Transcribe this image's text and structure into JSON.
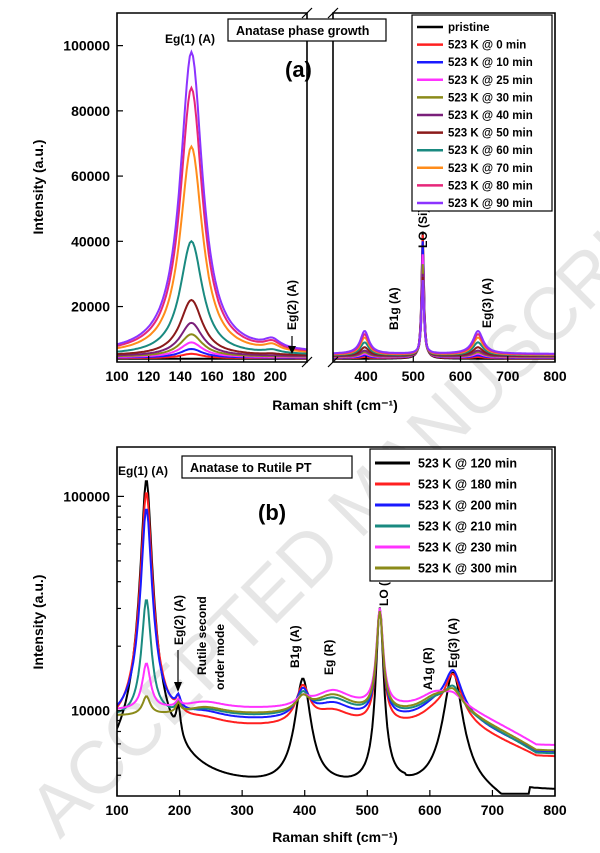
{
  "watermark": "ACCEPTED MANUSCRIPT",
  "chart_data": [
    {
      "type": "line",
      "panel_label": "(a)",
      "title": "Anatase phase growth",
      "xlabel": "Raman shift (cm⁻¹)",
      "ylabel": "Intensity (a.u.)",
      "xlim_left": [
        100,
        220
      ],
      "xlim_right": [
        330,
        800
      ],
      "ylim": [
        3000,
        110000
      ],
      "yscale": "linear",
      "xticks_left": [
        100,
        120,
        140,
        160,
        180,
        200
      ],
      "xticks_right": [
        400,
        500,
        600,
        700,
        800
      ],
      "yticks": [
        20000,
        40000,
        60000,
        80000,
        100000
      ],
      "legend_position": "top-right",
      "annotations": [
        {
          "text": "Eg(1) (A)",
          "x": 147
        },
        {
          "text": "Eg(2) (A)",
          "x": 198
        },
        {
          "text": "B1g (A)",
          "x": 397
        },
        {
          "text": "LO (Si)",
          "x": 520
        },
        {
          "text": "Eg(3) (A)",
          "x": 637
        }
      ],
      "series": [
        {
          "name": "pristine",
          "color": "#000000",
          "peaks": {
            "Eg1": 4000,
            "Eg2": 4000,
            "B1g": 4000,
            "Si": 43000,
            "Eg3": 4000
          }
        },
        {
          "name": "523 K @ 0 min",
          "color": "#ff2020",
          "peaks": {
            "Eg1": 5500,
            "Eg2": 4200,
            "B1g": 4500,
            "Si": 42000,
            "Eg3": 4500
          }
        },
        {
          "name": "523 K @ 10 min",
          "color": "#1a1aff",
          "peaks": {
            "Eg1": 7000,
            "Eg2": 4300,
            "B1g": 5000,
            "Si": 40000,
            "Eg3": 5000
          }
        },
        {
          "name": "523 K @ 25 min",
          "color": "#ff33ff",
          "peaks": {
            "Eg1": 9000,
            "Eg2": 4400,
            "B1g": 5500,
            "Si": 36000,
            "Eg3": 5500
          }
        },
        {
          "name": "523 K @ 30 min",
          "color": "#8b8b1a",
          "peaks": {
            "Eg1": 11500,
            "Eg2": 4600,
            "B1g": 6000,
            "Si": 33000,
            "Eg3": 6000
          }
        },
        {
          "name": "523 K @ 40 min",
          "color": "#7a1f7a",
          "peaks": {
            "Eg1": 15000,
            "Eg2": 4800,
            "B1g": 6500,
            "Si": 30000,
            "Eg3": 6500
          }
        },
        {
          "name": "523 K @ 50 min",
          "color": "#8b1a1a",
          "peaks": {
            "Eg1": 22000,
            "Eg2": 5200,
            "B1g": 7500,
            "Si": 29000,
            "Eg3": 7500
          }
        },
        {
          "name": "523 K @ 60 min",
          "color": "#1a8a80",
          "peaks": {
            "Eg1": 40000,
            "Eg2": 6000,
            "B1g": 9000,
            "Si": 28000,
            "Eg3": 9000
          }
        },
        {
          "name": "523 K @ 70 min",
          "color": "#ff8c1a",
          "peaks": {
            "Eg1": 69000,
            "Eg2": 7000,
            "B1g": 10500,
            "Si": 28000,
            "Eg3": 10500
          }
        },
        {
          "name": "523 K @ 80 min",
          "color": "#e6267a",
          "peaks": {
            "Eg1": 87000,
            "Eg2": 7500,
            "B1g": 11500,
            "Si": 28000,
            "Eg3": 11500
          }
        },
        {
          "name": "523 K @ 90 min",
          "color": "#8c33ff",
          "peaks": {
            "Eg1": 98000,
            "Eg2": 8000,
            "B1g": 12500,
            "Si": 28000,
            "Eg3": 12500
          }
        }
      ]
    },
    {
      "type": "line",
      "panel_label": "(b)",
      "title": "Anatase to Rutile PT",
      "xlabel": "Raman shift (cm⁻¹)",
      "ylabel": "Intensity (a.u.)",
      "xlim": [
        100,
        800
      ],
      "ylim": [
        4000,
        170000
      ],
      "yscale": "log",
      "xticks": [
        100,
        200,
        300,
        400,
        500,
        600,
        700,
        800
      ],
      "yticks": [
        10000,
        100000
      ],
      "legend_position": "top-right",
      "annotations": [
        {
          "text": "Eg(1) (A)",
          "x": 147
        },
        {
          "text": "Eg(2) (A)",
          "x": 198
        },
        {
          "text": "Rutile second",
          "x": 215
        },
        {
          "text": "order mode",
          "x": 255
        },
        {
          "text": "B1g (A)",
          "x": 397
        },
        {
          "text": "Eg (R)",
          "x": 445
        },
        {
          "text": "LO (Si)",
          "x": 520
        },
        {
          "text": "A1g (R)",
          "x": 610
        },
        {
          "text": "Eg(3) (A)",
          "x": 637
        }
      ],
      "series": [
        {
          "name": "523 K @ 120 min",
          "color": "#000000"
        },
        {
          "name": "523 K @ 180 min",
          "color": "#ff2020"
        },
        {
          "name": "523 K @ 200 min",
          "color": "#1a1aff"
        },
        {
          "name": "523 K @ 210 min",
          "color": "#1a8a80"
        },
        {
          "name": "523 K @ 230 min",
          "color": "#ff33ff"
        },
        {
          "name": "523 K @ 300 min",
          "color": "#8b8b1a"
        }
      ]
    }
  ]
}
